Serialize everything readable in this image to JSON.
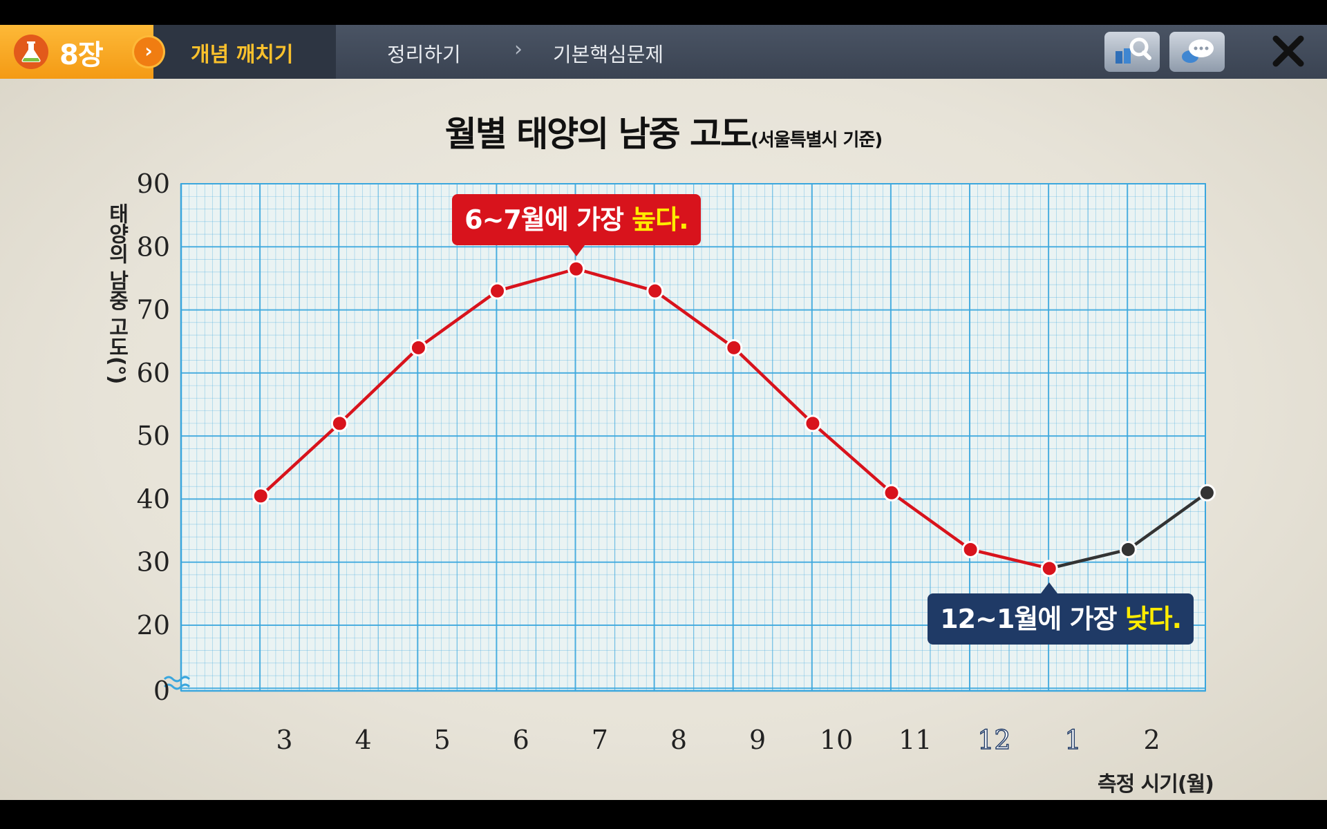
{
  "header": {
    "chapter": "8장",
    "active_tab": "개념 깨치기",
    "crumbs": [
      "정리하기",
      "기본핵심문제"
    ]
  },
  "icons": {
    "chapter": "flask-icon",
    "next": "chevron-right-icon",
    "search": "search-book-icon",
    "chat": "chat-bubble-icon",
    "close": "close-icon"
  },
  "progress": 0.348,
  "chart_data": {
    "type": "line",
    "title": "월별 태양의 남중 고도",
    "subtitle": "(서울특별시 기준)",
    "xlabel": "측정 시기(월)",
    "ylabel": "태양의 남중 고도(°)",
    "categories": [
      "3",
      "4",
      "5",
      "6",
      "7",
      "8",
      "9",
      "10",
      "11",
      "12",
      "1",
      "2"
    ],
    "x": [
      2.7,
      3.7,
      4.7,
      5.7,
      6.7,
      7.7,
      8.7,
      9.7,
      10.7,
      11.7,
      12.7,
      13.7,
      14.7
    ],
    "values": [
      40.5,
      52,
      64,
      73,
      76.5,
      73,
      64,
      52,
      41,
      32,
      29,
      32,
      41
    ],
    "colored_segments": [
      {
        "from": 0,
        "to": 10,
        "color": "#d8131c"
      },
      {
        "from": 10,
        "to": 12,
        "color": "#333333"
      }
    ],
    "ylim": [
      0,
      90
    ],
    "y_ticks": [
      0,
      20,
      30,
      40,
      50,
      60,
      70,
      80,
      90
    ],
    "axis_break": true,
    "grid": true,
    "grid_color": "#3aa6dd",
    "highlight_categories": [
      "12",
      "1"
    ],
    "annotations": [
      {
        "text": "6~7월에 가장 ",
        "emphasis": "높다.",
        "at_index": 4,
        "position": "above",
        "color": "#d8131c"
      },
      {
        "text": "12~1월에 가장 ",
        "emphasis": "낮다.",
        "at_index": 10,
        "position": "below",
        "color": "#1f3a66"
      }
    ]
  }
}
